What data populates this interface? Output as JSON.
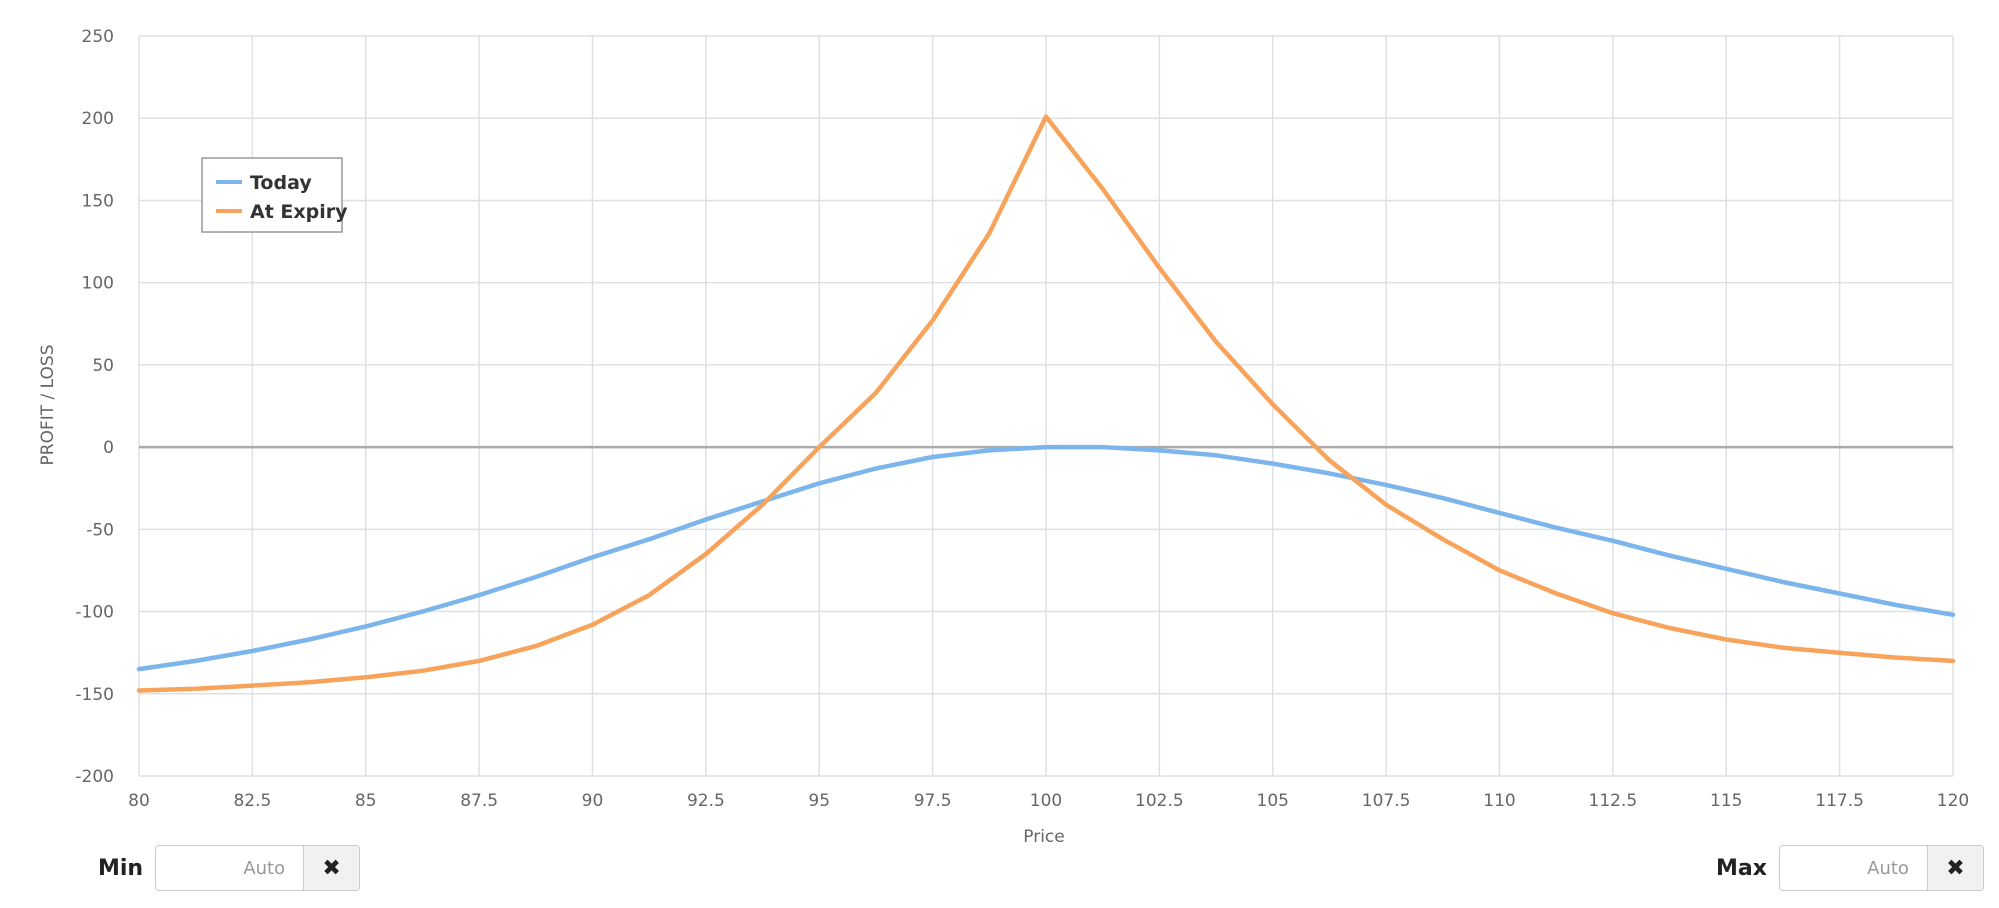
{
  "chart_data": {
    "type": "line",
    "xlabel": "Price",
    "ylabel": "PROFIT / LOSS",
    "xlim": [
      80,
      120
    ],
    "ylim": [
      -200,
      250
    ],
    "x_ticks": [
      "80",
      "82.5",
      "85",
      "87.5",
      "90",
      "92.5",
      "95",
      "97.5",
      "100",
      "102.5",
      "105",
      "107.5",
      "110",
      "112.5",
      "115",
      "117.5",
      "120"
    ],
    "y_ticks": [
      "250",
      "200",
      "150",
      "100",
      "50",
      "0",
      "-50",
      "-100",
      "-150",
      "-200"
    ],
    "x_tick_values": [
      80,
      82.5,
      85,
      87.5,
      90,
      92.5,
      95,
      97.5,
      100,
      102.5,
      105,
      107.5,
      110,
      112.5,
      115,
      117.5,
      120
    ],
    "y_tick_values": [
      250,
      200,
      150,
      100,
      50,
      0,
      -50,
      -100,
      -150,
      -200
    ],
    "grid": true,
    "legend_position": "top-left",
    "series": [
      {
        "name": "Today",
        "color": "#7cb5ec",
        "x": [
          80,
          81.25,
          82.5,
          83.75,
          85,
          86.25,
          87.5,
          88.75,
          90,
          91.25,
          92.5,
          93.75,
          95,
          96.25,
          97.5,
          98.75,
          100,
          101.25,
          102.5,
          103.75,
          105,
          106.25,
          107.5,
          108.75,
          110,
          111.25,
          112.5,
          113.75,
          115,
          116.25,
          117.5,
          118.75,
          120
        ],
        "y": [
          -135,
          -130,
          -124,
          -117,
          -109,
          -100,
          -90,
          -79,
          -67,
          -56,
          -44,
          -33,
          -22,
          -13,
          -6,
          -2,
          0,
          0,
          -2,
          -5,
          -10,
          -16,
          -23,
          -31,
          -40,
          -49,
          -57,
          -66,
          -74,
          -82,
          -89,
          -96,
          -102
        ]
      },
      {
        "name": "At Expiry",
        "color": "#f7a35c",
        "x": [
          80,
          81.25,
          82.5,
          83.75,
          85,
          86.25,
          87.5,
          88.75,
          90,
          91.25,
          92.5,
          93.75,
          95,
          96.25,
          97.5,
          98.75,
          100,
          101.25,
          102.5,
          103.75,
          105,
          106.25,
          107.5,
          108.75,
          110,
          111.25,
          112.5,
          113.75,
          115,
          116.25,
          117.5,
          118.75,
          120
        ],
        "y": [
          -148,
          -147,
          -145,
          -143,
          -140,
          -136,
          -130,
          -121,
          -108,
          -90,
          -65,
          -35,
          0,
          33,
          77,
          130,
          201,
          157,
          109,
          64,
          26,
          -8,
          -35,
          -56,
          -75,
          -89,
          -101,
          -110,
          -117,
          -122,
          -125,
          -128,
          -130
        ]
      }
    ]
  },
  "controls": {
    "min_label": "Min",
    "min_placeholder": "Auto",
    "max_label": "Max",
    "max_placeholder": "Auto",
    "clear_glyph": "✖"
  }
}
